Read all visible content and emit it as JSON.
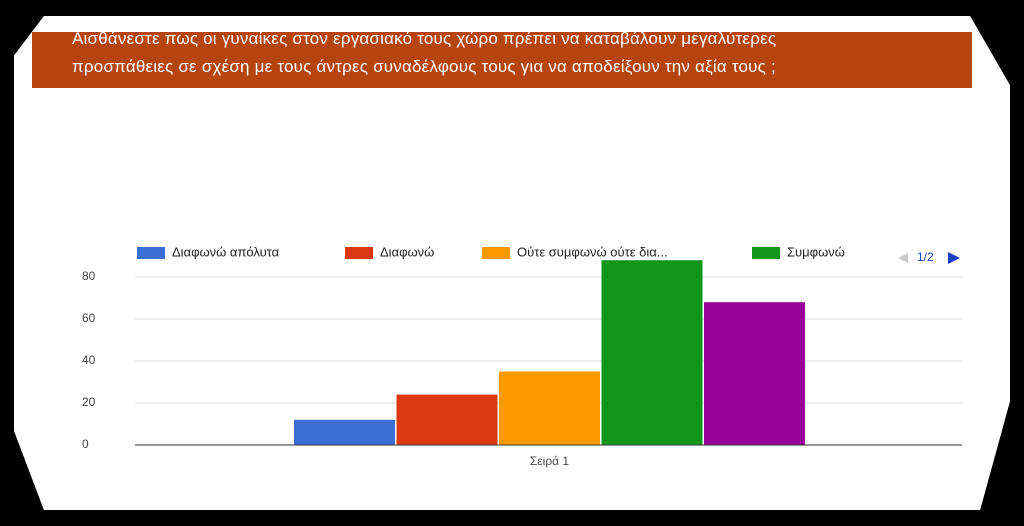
{
  "question": {
    "line1": "Αισθάνεστε πως οι γυναίκες στον εργασιακό τους χώρο πρέπει να καταβάλουν μεγαλύτερες",
    "line2": "προσπάθειες σε σχέση με τους άντρες συναδέλφους τους για να αποδείξουν την αξία τους ;"
  },
  "legend_pager": "1/2",
  "chart_data": {
    "type": "bar",
    "categories": [
      "Σειρά 1"
    ],
    "series": [
      {
        "name": "Διαφωνώ απόλυτα",
        "values": [
          12
        ],
        "color": "#3c6fd6"
      },
      {
        "name": "Διαφωνώ",
        "values": [
          24
        ],
        "color": "#dc3912"
      },
      {
        "name": "Ούτε συμφωνώ ούτε δια...",
        "values": [
          35
        ],
        "color": "#ff9900"
      },
      {
        "name": "Συμφωνώ",
        "values": [
          88
        ],
        "color": "#109618"
      },
      {
        "name": "",
        "values": [
          68
        ],
        "color": "#990099"
      }
    ],
    "title": "",
    "xlabel": "",
    "ylabel": "",
    "ylim": [
      0,
      88
    ],
    "yticks": [
      0,
      20,
      40,
      60,
      80
    ],
    "grid": true,
    "legend_position": "top"
  }
}
